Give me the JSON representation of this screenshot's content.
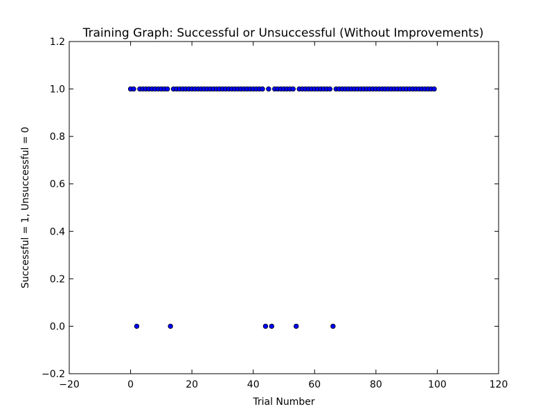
{
  "chart_data": {
    "type": "scatter",
    "title": "Training Graph: Successful or Unsuccessful (Without Improvements)",
    "xlabel": "Trial Number",
    "ylabel": "Successful = 1, Unsuccessful = 0",
    "xlim": [
      -20,
      120
    ],
    "ylim": [
      -0.2,
      1.2
    ],
    "xticks": [
      -20,
      0,
      20,
      40,
      60,
      80,
      100,
      120
    ],
    "xtick_labels": [
      "−20",
      "0",
      "20",
      "40",
      "60",
      "80",
      "100",
      "120"
    ],
    "yticks": [
      -0.2,
      0.0,
      0.2,
      0.4,
      0.6,
      0.8,
      1.0,
      1.2
    ],
    "ytick_labels": [
      "−0.2",
      "0.0",
      "0.2",
      "0.4",
      "0.6",
      "0.8",
      "1.0",
      "1.2"
    ],
    "grid": false,
    "marker_color": "#0000ff",
    "marker_edge_color": "#000000",
    "series": [
      {
        "x": [
          0,
          1,
          2,
          3,
          4,
          5,
          6,
          7,
          8,
          9,
          10,
          11,
          12,
          13,
          14,
          15,
          16,
          17,
          18,
          19,
          20,
          21,
          22,
          23,
          24,
          25,
          26,
          27,
          28,
          29,
          30,
          31,
          32,
          33,
          34,
          35,
          36,
          37,
          38,
          39,
          40,
          41,
          42,
          43,
          44,
          45,
          46,
          47,
          48,
          49,
          50,
          51,
          52,
          53,
          54,
          55,
          56,
          57,
          58,
          59,
          60,
          61,
          62,
          63,
          64,
          65,
          66,
          67,
          68,
          69,
          70,
          71,
          72,
          73,
          74,
          75,
          76,
          77,
          78,
          79,
          80,
          81,
          82,
          83,
          84,
          85,
          86,
          87,
          88,
          89,
          90,
          91,
          92,
          93,
          94,
          95,
          96,
          97,
          98,
          99
        ],
        "y": [
          1,
          1,
          0,
          1,
          1,
          1,
          1,
          1,
          1,
          1,
          1,
          1,
          1,
          0,
          1,
          1,
          1,
          1,
          1,
          1,
          1,
          1,
          1,
          1,
          1,
          1,
          1,
          1,
          1,
          1,
          1,
          1,
          1,
          1,
          1,
          1,
          1,
          1,
          1,
          1,
          1,
          1,
          1,
          1,
          0,
          1,
          0,
          1,
          1,
          1,
          1,
          1,
          1,
          1,
          0,
          1,
          1,
          1,
          1,
          1,
          1,
          1,
          1,
          1,
          1,
          1,
          0,
          1,
          1,
          1,
          1,
          1,
          1,
          1,
          1,
          1,
          1,
          1,
          1,
          1,
          1,
          1,
          1,
          1,
          1,
          1,
          1,
          1,
          1,
          1,
          1,
          1,
          1,
          1,
          1,
          1,
          1,
          1,
          1,
          1
        ]
      }
    ]
  }
}
